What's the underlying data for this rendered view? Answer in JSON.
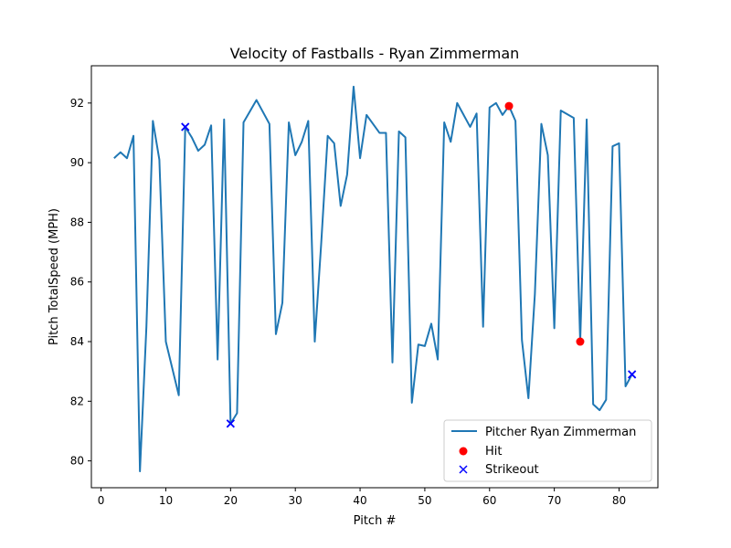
{
  "chart_data": {
    "type": "line",
    "title": "Velocity of Fastballs - Ryan Zimmerman",
    "xlabel": "Pitch #",
    "ylabel": "Pitch TotalSpeed (MPH)",
    "xlim": [
      -1.5,
      86
    ],
    "ylim": [
      79.1,
      93.25
    ],
    "xticks": [
      0,
      10,
      20,
      30,
      40,
      50,
      60,
      70,
      80
    ],
    "yticks": [
      80,
      82,
      84,
      86,
      88,
      90,
      92
    ],
    "legend_position": "lower right",
    "series": [
      {
        "name": "Pitcher Ryan Zimmerman",
        "kind": "line",
        "color": "#1f77b4",
        "x": [
          2,
          3,
          4,
          5,
          6,
          7,
          8,
          9,
          10,
          11,
          12,
          13,
          14,
          15,
          16,
          17,
          18,
          19,
          20,
          21,
          22,
          24,
          26,
          27,
          28,
          29,
          30,
          31,
          32,
          33,
          34,
          35,
          36,
          37,
          38,
          39,
          40,
          41,
          43,
          44,
          45,
          46,
          47,
          48,
          49,
          50,
          51,
          52,
          53,
          54,
          55,
          57,
          58,
          59,
          60,
          61,
          62,
          63,
          64,
          65,
          66,
          67,
          68,
          69,
          70,
          71,
          73,
          74,
          75,
          76,
          77,
          78,
          79,
          80,
          81,
          82
        ],
        "y": [
          90.15,
          90.35,
          90.15,
          90.9,
          79.65,
          84.5,
          91.4,
          90.1,
          84.0,
          83.1,
          82.2,
          91.2,
          90.85,
          90.4,
          90.6,
          91.25,
          83.4,
          91.45,
          81.25,
          81.6,
          91.35,
          92.1,
          91.3,
          84.25,
          85.3,
          91.35,
          90.25,
          90.7,
          91.4,
          84.0,
          87.3,
          90.9,
          90.65,
          88.55,
          89.6,
          92.55,
          90.15,
          91.6,
          91.0,
          91.0,
          83.3,
          91.05,
          90.85,
          81.95,
          83.9,
          83.85,
          84.6,
          83.4,
          91.35,
          90.7,
          92.0,
          91.2,
          91.65,
          84.5,
          91.85,
          92.0,
          91.6,
          91.9,
          91.4,
          84.05,
          82.1,
          85.6,
          91.3,
          90.25,
          84.45,
          91.75,
          91.5,
          84.0,
          91.45,
          81.9,
          81.7,
          82.05,
          90.55,
          90.65,
          82.5,
          82.9
        ]
      },
      {
        "name": "Hit",
        "kind": "scatter",
        "marker": "circle",
        "color": "#ff0000",
        "x": [
          63,
          74
        ],
        "y": [
          91.9,
          84.0
        ]
      },
      {
        "name": "Strikeout",
        "kind": "scatter",
        "marker": "x",
        "color": "#0000ff",
        "x": [
          13,
          20,
          82
        ],
        "y": [
          91.2,
          81.25,
          82.9
        ]
      }
    ]
  }
}
